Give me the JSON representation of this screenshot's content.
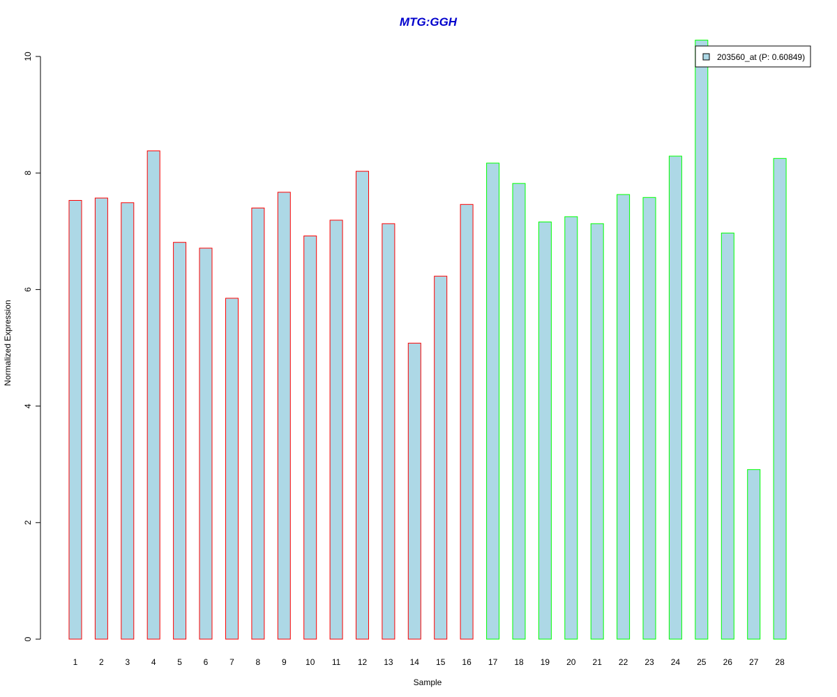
{
  "chart_data": {
    "type": "bar",
    "title": "MTG:GGH",
    "xlabel": "Sample",
    "ylabel": "Normalized Expression",
    "ylim": [
      0,
      10
    ],
    "yticks": [
      0,
      2,
      4,
      6,
      8,
      10
    ],
    "categories": [
      "1",
      "2",
      "3",
      "4",
      "5",
      "6",
      "7",
      "8",
      "9",
      "10",
      "11",
      "12",
      "13",
      "14",
      "15",
      "16",
      "17",
      "18",
      "19",
      "20",
      "21",
      "22",
      "23",
      "24",
      "25",
      "26",
      "27",
      "28"
    ],
    "series": [
      {
        "name": "203560_at (P: 0.60849)",
        "values": [
          7.53,
          7.57,
          7.49,
          8.38,
          6.81,
          6.71,
          5.85,
          7.4,
          7.67,
          6.92,
          7.19,
          8.03,
          7.13,
          5.08,
          6.23,
          7.46,
          8.17,
          7.82,
          7.16,
          7.25,
          7.13,
          7.63,
          7.58,
          8.29,
          10.28,
          6.97,
          2.91,
          8.25
        ]
      }
    ],
    "groups": [
      1,
      1,
      1,
      1,
      1,
      1,
      1,
      1,
      1,
      1,
      1,
      1,
      1,
      1,
      1,
      1,
      2,
      2,
      2,
      2,
      2,
      2,
      2,
      2,
      2,
      2,
      2,
      2
    ],
    "legend_position": "top-right",
    "grid": false
  },
  "colors": {
    "bar_fill": "#add8e6",
    "group_1_border": "#ff0000",
    "group_2_border": "#00ff00",
    "title": "#0000cd",
    "axis": "#000000"
  }
}
